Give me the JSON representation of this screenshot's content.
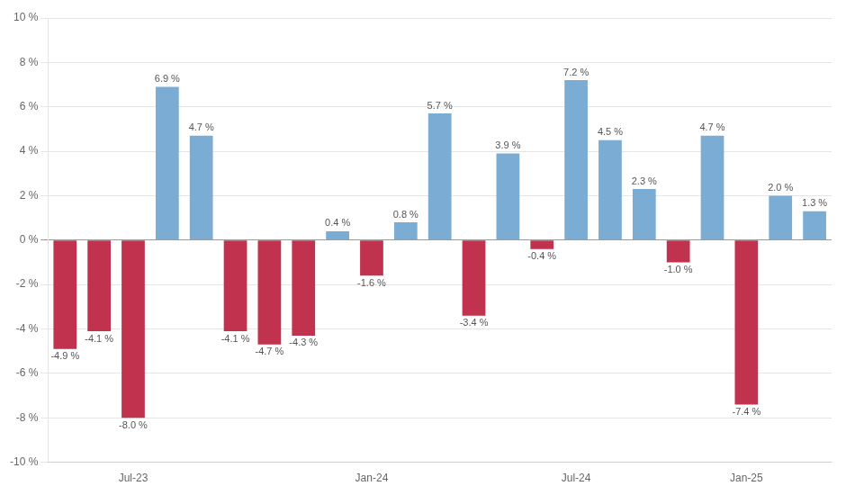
{
  "chart_data": {
    "type": "bar",
    "categories": [
      null,
      null,
      "Jul-23",
      null,
      null,
      null,
      null,
      null,
      null,
      "Jan-24",
      null,
      null,
      null,
      null,
      null,
      "Jul-24",
      null,
      null,
      null,
      null,
      "Jan-25",
      null,
      null
    ],
    "values": [
      -4.9,
      -4.1,
      -8.0,
      6.9,
      4.7,
      -4.1,
      -4.7,
      -4.3,
      0.4,
      -1.6,
      0.8,
      5.7,
      -3.4,
      3.9,
      -0.4,
      7.2,
      4.5,
      2.3,
      -1.0,
      4.7,
      -7.4,
      2.0,
      1.3
    ],
    "value_labels": [
      "-4.9 %",
      "-4.1 %",
      "-8.0 %",
      "6.9 %",
      "4.7 %",
      "-4.1 %",
      "-4.7 %",
      "-4.3 %",
      "0.4 %",
      "-1.6 %",
      "0.8 %",
      "5.7 %",
      "-3.4 %",
      "3.9 %",
      "-0.4 %",
      "7.2 %",
      "4.5 %",
      "2.3 %",
      "-1.0 %",
      "4.7 %",
      "-7.4 %",
      "2.0 %",
      "1.3 %"
    ],
    "colors": [
      "#c0324e",
      "#c0324e",
      "#c0324e",
      "#7badd4",
      "#7badd4",
      "#c0324e",
      "#c0324e",
      "#c0324e",
      "#7badd4",
      "#c0324e",
      "#7badd4",
      "#7badd4",
      "#c0324e",
      "#7badd4",
      "#c0324e",
      "#7badd4",
      "#7badd4",
      "#7badd4",
      "#c0324e",
      "#7badd4",
      "#c0324e",
      "#7badd4",
      "#7badd4"
    ],
    "ylim": [
      -10,
      10
    ],
    "yticks": [
      {
        "value": -10,
        "label": "-10 %"
      },
      {
        "value": -8,
        "label": "-8 %"
      },
      {
        "value": -6,
        "label": "-6 %"
      },
      {
        "value": -4,
        "label": "-4 %"
      },
      {
        "value": -2,
        "label": "-2 %"
      },
      {
        "value": 0,
        "label": "0 %"
      },
      {
        "value": 2,
        "label": "2 %"
      },
      {
        "value": 4,
        "label": "4 %"
      },
      {
        "value": 6,
        "label": "6 %"
      },
      {
        "value": 8,
        "label": "8 %"
      },
      {
        "value": 10,
        "label": "10 %"
      }
    ],
    "grid": true,
    "data_labels": true
  }
}
